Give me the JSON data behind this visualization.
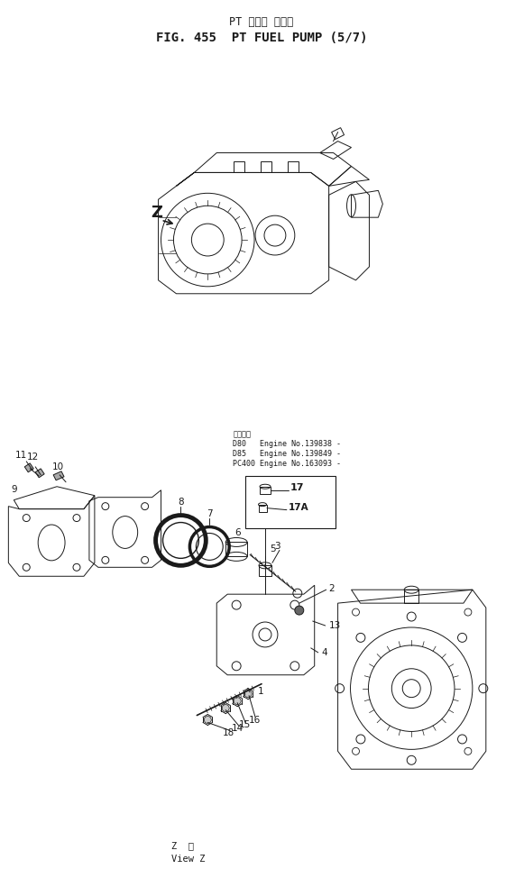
{
  "title_line1": "PT フェル ポンプ",
  "title_line2": "FIG. 455  PT FUEL PUMP (5/7)",
  "bottom_label_line1": "Z  視",
  "bottom_label_line2": "View Z",
  "bg_color": "#ffffff",
  "line_color": "#1a1a1a",
  "fig_width": 5.81,
  "fig_height": 9.74,
  "dpi": 100,
  "info_box_text": "適用号簺\nD80   Engine No.139838 -\nD85   Engine No.139849 -\nPC400 Engine No.163093 -"
}
